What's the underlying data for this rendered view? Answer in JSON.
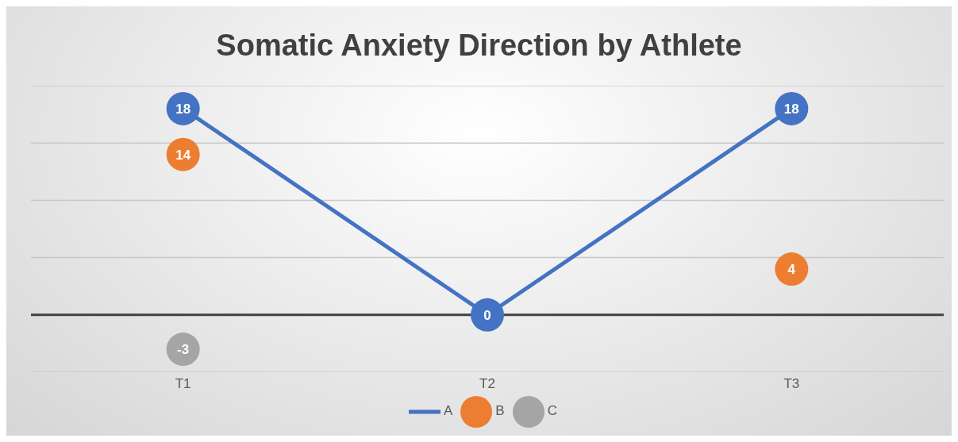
{
  "chart_data": {
    "type": "line",
    "title": "Somatic Anxiety Direction by Athlete",
    "categories": [
      "T1",
      "T2",
      "T3"
    ],
    "series": [
      {
        "name": "A",
        "color": "#4472c4",
        "values": [
          18,
          0,
          18
        ]
      },
      {
        "name": "B",
        "type": "scatter",
        "color": "#ed7d31",
        "values": [
          14,
          null,
          4
        ]
      },
      {
        "name": "C",
        "type": "scatter",
        "color": "#a5a5a5",
        "values": [
          -3,
          null,
          null
        ]
      }
    ],
    "ylim": [
      -5,
      20
    ],
    "yticks": [
      {
        "value": -5,
        "label": null
      },
      {
        "value": 0,
        "label": null
      },
      {
        "value": 5,
        "label": null
      },
      {
        "value": 10,
        "label": null
      },
      {
        "value": 15,
        "label": null
      },
      {
        "value": 20,
        "label": null
      }
    ],
    "tick_labels": "x",
    "grid": "y",
    "legend": "bottom",
    "marker": "circle",
    "line_style": "solid",
    "data_labels": true,
    "ref_lines": [
      {
        "axis": "y",
        "value": 0,
        "color": "#404040"
      }
    ]
  }
}
